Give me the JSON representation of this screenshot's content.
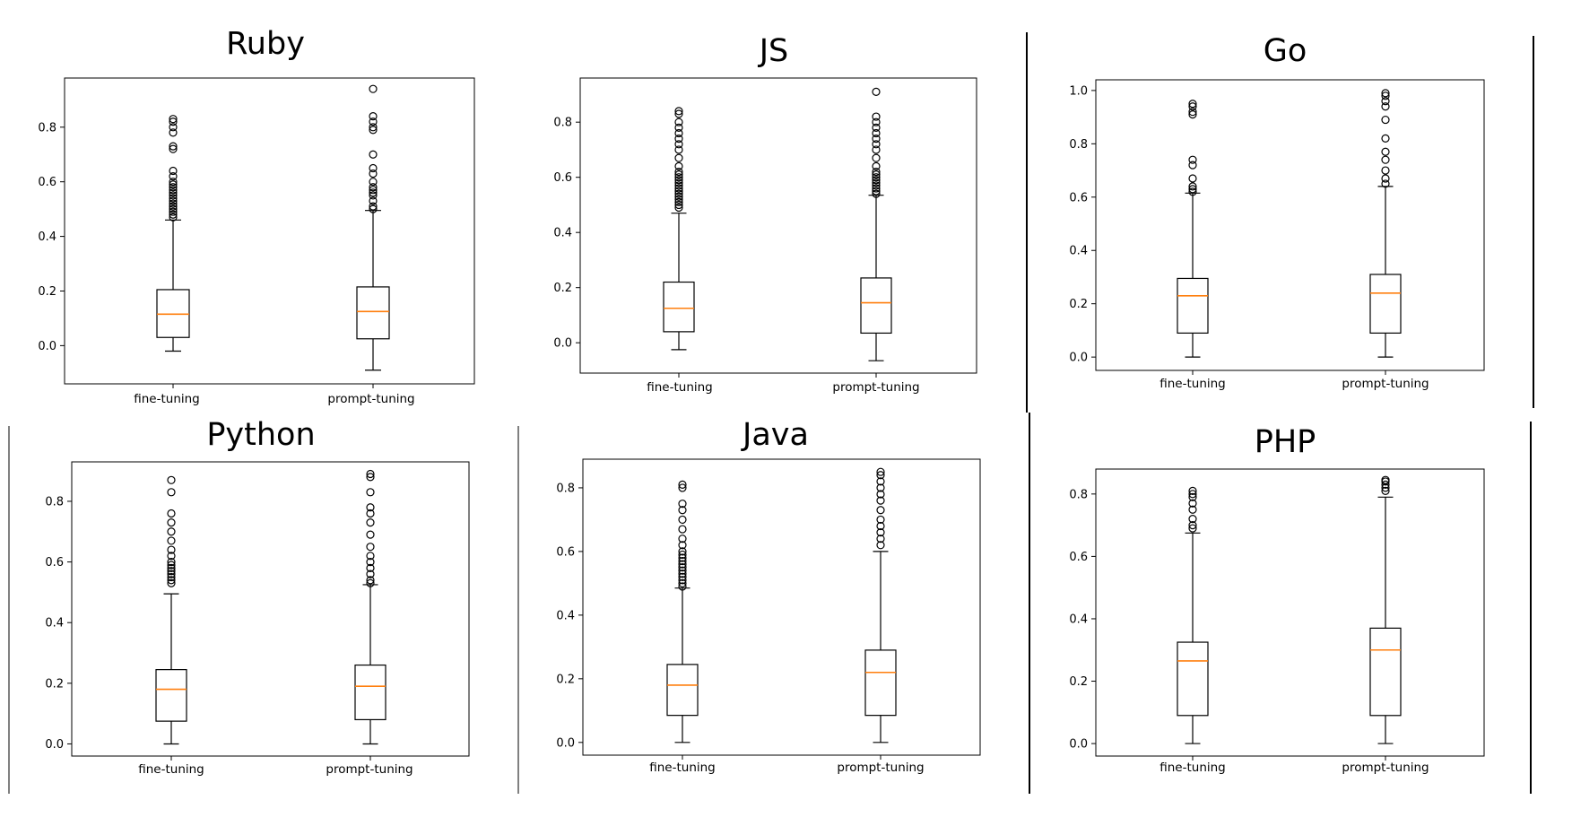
{
  "chart_data": [
    {
      "type": "box",
      "title": "Ruby",
      "categories": [
        "fine-tuning",
        "prompt-tuning"
      ],
      "yticks": [
        "0.0",
        "0.2",
        "0.4",
        "0.6",
        "0.8"
      ],
      "yticks_values": [
        0.0,
        0.2,
        0.4,
        0.6,
        0.8
      ],
      "ylim": [
        -0.14,
        0.98
      ],
      "series": [
        {
          "whislo": -0.02,
          "q1": 0.03,
          "med": 0.115,
          "q3": 0.205,
          "whishi": 0.46,
          "fliers": [
            0.47,
            0.48,
            0.49,
            0.5,
            0.51,
            0.52,
            0.53,
            0.54,
            0.55,
            0.56,
            0.57,
            0.58,
            0.59,
            0.6,
            0.62,
            0.64,
            0.72,
            0.73,
            0.78,
            0.8,
            0.82,
            0.83
          ]
        },
        {
          "whislo": -0.09,
          "q1": 0.025,
          "med": 0.125,
          "q3": 0.215,
          "whishi": 0.495,
          "fliers": [
            0.5,
            0.51,
            0.53,
            0.55,
            0.56,
            0.57,
            0.58,
            0.6,
            0.63,
            0.65,
            0.7,
            0.79,
            0.8,
            0.82,
            0.84,
            0.94
          ]
        }
      ]
    },
    {
      "type": "box",
      "title": "JS",
      "categories": [
        "fine-tuning",
        "prompt-tuning"
      ],
      "yticks": [
        "0.0",
        "0.2",
        "0.4",
        "0.6",
        "0.8"
      ],
      "yticks_values": [
        0.0,
        0.2,
        0.4,
        0.6,
        0.8
      ],
      "ylim": [
        -0.11,
        0.96
      ],
      "series": [
        {
          "whislo": -0.025,
          "q1": 0.04,
          "med": 0.125,
          "q3": 0.22,
          "whishi": 0.47,
          "fliers": [
            0.49,
            0.5,
            0.51,
            0.52,
            0.53,
            0.54,
            0.55,
            0.56,
            0.57,
            0.58,
            0.59,
            0.6,
            0.61,
            0.62,
            0.64,
            0.67,
            0.7,
            0.72,
            0.74,
            0.76,
            0.78,
            0.8,
            0.83,
            0.84
          ]
        },
        {
          "whislo": -0.065,
          "q1": 0.035,
          "med": 0.145,
          "q3": 0.235,
          "whishi": 0.535,
          "fliers": [
            0.54,
            0.55,
            0.56,
            0.57,
            0.58,
            0.59,
            0.6,
            0.61,
            0.62,
            0.64,
            0.67,
            0.7,
            0.72,
            0.74,
            0.76,
            0.78,
            0.8,
            0.82,
            0.91
          ]
        }
      ]
    },
    {
      "type": "box",
      "title": "Go",
      "categories": [
        "fine-tuning",
        "prompt-tuning"
      ],
      "yticks": [
        "0.0",
        "0.2",
        "0.4",
        "0.6",
        "0.8",
        "1.0"
      ],
      "yticks_values": [
        0.0,
        0.2,
        0.4,
        0.6,
        0.8,
        1.0
      ],
      "ylim": [
        -0.05,
        1.04
      ],
      "series": [
        {
          "whislo": 0.0,
          "q1": 0.09,
          "med": 0.23,
          "q3": 0.295,
          "whishi": 0.615,
          "fliers": [
            0.62,
            0.63,
            0.64,
            0.67,
            0.72,
            0.74,
            0.91,
            0.92,
            0.94,
            0.95
          ]
        },
        {
          "whislo": 0.0,
          "q1": 0.09,
          "med": 0.24,
          "q3": 0.31,
          "whishi": 0.64,
          "fliers": [
            0.65,
            0.67,
            0.7,
            0.74,
            0.77,
            0.82,
            0.89,
            0.94,
            0.96,
            0.98,
            0.99
          ]
        }
      ]
    },
    {
      "type": "box",
      "title": "Python",
      "categories": [
        "fine-tuning",
        "prompt-tuning"
      ],
      "yticks": [
        "0.0",
        "0.2",
        "0.4",
        "0.6",
        "0.8"
      ],
      "yticks_values": [
        0.0,
        0.2,
        0.4,
        0.6,
        0.8
      ],
      "ylim": [
        -0.04,
        0.93
      ],
      "series": [
        {
          "whislo": 0.0,
          "q1": 0.075,
          "med": 0.18,
          "q3": 0.245,
          "whishi": 0.495,
          "fliers": [
            0.53,
            0.54,
            0.55,
            0.56,
            0.57,
            0.58,
            0.59,
            0.6,
            0.62,
            0.64,
            0.67,
            0.7,
            0.73,
            0.76,
            0.83,
            0.87
          ]
        },
        {
          "whislo": 0.0,
          "q1": 0.08,
          "med": 0.19,
          "q3": 0.26,
          "whishi": 0.525,
          "fliers": [
            0.53,
            0.54,
            0.56,
            0.58,
            0.6,
            0.62,
            0.65,
            0.69,
            0.73,
            0.76,
            0.78,
            0.83,
            0.88,
            0.89
          ]
        }
      ]
    },
    {
      "type": "box",
      "title": "Java",
      "categories": [
        "fine-tuning",
        "prompt-tuning"
      ],
      "yticks": [
        "0.0",
        "0.2",
        "0.4",
        "0.6",
        "0.8"
      ],
      "yticks_values": [
        0.0,
        0.2,
        0.4,
        0.6,
        0.8
      ],
      "ylim": [
        -0.04,
        0.89
      ],
      "series": [
        {
          "whislo": 0.0,
          "q1": 0.085,
          "med": 0.18,
          "q3": 0.245,
          "whishi": 0.485,
          "fliers": [
            0.49,
            0.5,
            0.51,
            0.52,
            0.53,
            0.54,
            0.55,
            0.56,
            0.57,
            0.58,
            0.59,
            0.6,
            0.62,
            0.64,
            0.67,
            0.7,
            0.73,
            0.75,
            0.8,
            0.81
          ]
        },
        {
          "whislo": 0.0,
          "q1": 0.085,
          "med": 0.22,
          "q3": 0.29,
          "whishi": 0.6,
          "fliers": [
            0.62,
            0.64,
            0.66,
            0.68,
            0.7,
            0.73,
            0.76,
            0.78,
            0.8,
            0.82,
            0.84,
            0.85
          ]
        }
      ]
    },
    {
      "type": "box",
      "title": "PHP",
      "categories": [
        "fine-tuning",
        "prompt-tuning"
      ],
      "yticks": [
        "0.0",
        "0.2",
        "0.4",
        "0.6",
        "0.8"
      ],
      "yticks_values": [
        0.0,
        0.2,
        0.4,
        0.6,
        0.8
      ],
      "ylim": [
        -0.04,
        0.88
      ],
      "series": [
        {
          "whislo": 0.0,
          "q1": 0.09,
          "med": 0.265,
          "q3": 0.325,
          "whishi": 0.675,
          "fliers": [
            0.69,
            0.7,
            0.72,
            0.75,
            0.77,
            0.79,
            0.8,
            0.81
          ]
        },
        {
          "whislo": 0.0,
          "q1": 0.09,
          "med": 0.3,
          "q3": 0.37,
          "whishi": 0.79,
          "fliers": [
            0.81,
            0.82,
            0.83,
            0.84,
            0.845
          ]
        }
      ]
    }
  ],
  "colors": {
    "median": "#ff7f0e",
    "stroke": "#000000",
    "background": "#ffffff"
  }
}
